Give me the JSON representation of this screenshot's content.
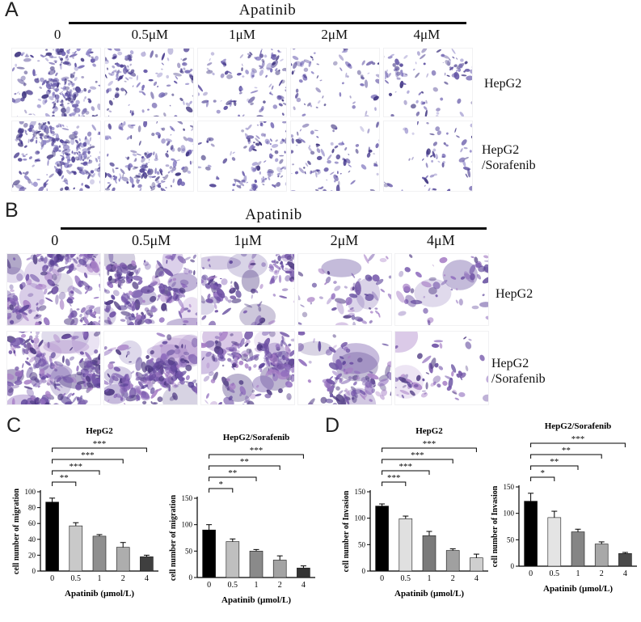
{
  "figure": {
    "panelA": {
      "label": "A",
      "drug": "Apatinib",
      "concentrations": [
        "0",
        "0.5μM",
        "1μM",
        "2μM",
        "4μM"
      ],
      "row_labels": [
        [
          "HepG2"
        ],
        [
          "HepG2",
          "/Sorafenib"
        ]
      ],
      "densities": [
        [
          230,
          140,
          115,
          80,
          100
        ],
        [
          260,
          170,
          130,
          95,
          70
        ]
      ],
      "stain_color": "#4c3f93"
    },
    "panelB": {
      "label": "B",
      "drug": "Apatinib",
      "concentrations": [
        "0",
        "0.5μM",
        "1μM",
        "2μM",
        "4μM"
      ],
      "row_labels": [
        [
          "HepG2"
        ],
        [
          "HepG2",
          "/Sorafenib"
        ]
      ],
      "densities": [
        [
          230,
          190,
          130,
          70,
          52
        ],
        [
          265,
          225,
          185,
          100,
          62
        ]
      ],
      "stain_color": "#6a4fa3"
    },
    "panelC_label": "C",
    "panelD_label": "D"
  },
  "chart_data": [
    {
      "panel": "C",
      "type": "bar",
      "title": "HepG2",
      "ylabel": "cell number of migration",
      "xlabel": "Apatinib (μmol/L)",
      "categories": [
        "0",
        "0.5",
        "1",
        "2",
        "4"
      ],
      "values": [
        87,
        57,
        44,
        30,
        18
      ],
      "errors": [
        5,
        4,
        2,
        6,
        2
      ],
      "ylim": [
        0,
        100
      ],
      "yticks": [
        0,
        20,
        40,
        60,
        80,
        100
      ],
      "bar_colors": [
        "#000000",
        "#c9c9c9",
        "#8f8f8f",
        "#adadad",
        "#3f3f3f"
      ],
      "brackets": [
        {
          "from": 0,
          "to": 1,
          "label": "**"
        },
        {
          "from": 0,
          "to": 2,
          "label": "***"
        },
        {
          "from": 0,
          "to": 3,
          "label": "***"
        },
        {
          "from": 0,
          "to": 4,
          "label": "***"
        }
      ]
    },
    {
      "panel": "C",
      "type": "bar",
      "title": "HepG2/Sorafenib",
      "ylabel": "cell number of migration",
      "xlabel": "Apatinib (μmol/L)",
      "categories": [
        "0",
        "0.5",
        "1",
        "2",
        "4"
      ],
      "values": [
        90,
        68,
        50,
        33,
        18
      ],
      "errors": [
        10,
        5,
        3,
        8,
        4
      ],
      "ylim": [
        0,
        150
      ],
      "yticks": [
        0,
        50,
        100,
        150
      ],
      "bar_colors": [
        "#000000",
        "#bfbfbf",
        "#8a8a8a",
        "#a3a3a3",
        "#333333"
      ],
      "brackets": [
        {
          "from": 0,
          "to": 1,
          "label": "*"
        },
        {
          "from": 0,
          "to": 2,
          "label": "**"
        },
        {
          "from": 0,
          "to": 3,
          "label": "**"
        },
        {
          "from": 0,
          "to": 4,
          "label": "***"
        }
      ]
    },
    {
      "panel": "D",
      "type": "bar",
      "title": "HepG2",
      "ylabel": "cell number of Invasion",
      "xlabel": "Apatinib (μmol/L)",
      "categories": [
        "0",
        "0.5",
        "1",
        "2",
        "4"
      ],
      "values": [
        123,
        99,
        67,
        39,
        25
      ],
      "errors": [
        4,
        5,
        8,
        3,
        7
      ],
      "ylim": [
        0,
        150
      ],
      "yticks": [
        0,
        50,
        100,
        150
      ],
      "bar_colors": [
        "#000000",
        "#e0e0e0",
        "#7a7a7a",
        "#a0a0a0",
        "#cfcfcf"
      ],
      "brackets": [
        {
          "from": 0,
          "to": 1,
          "label": "***"
        },
        {
          "from": 0,
          "to": 2,
          "label": "***"
        },
        {
          "from": 0,
          "to": 3,
          "label": "***"
        },
        {
          "from": 0,
          "to": 4,
          "label": "***"
        }
      ]
    },
    {
      "panel": "D",
      "type": "bar",
      "title": "HepG2/Sorafenib",
      "ylabel": "cell number of Invasion",
      "xlabel": "Apatinib (μmol/L)",
      "categories": [
        "0",
        "0.5",
        "1",
        "2",
        "4"
      ],
      "values": [
        123,
        92,
        65,
        42,
        24
      ],
      "errors": [
        15,
        12,
        5,
        4,
        2
      ],
      "ylim": [
        0,
        150
      ],
      "yticks": [
        0,
        50,
        100,
        150
      ],
      "bar_colors": [
        "#000000",
        "#e4e4e4",
        "#858585",
        "#a8a8a8",
        "#4a4a4a"
      ],
      "brackets": [
        {
          "from": 0,
          "to": 1,
          "label": "*"
        },
        {
          "from": 0,
          "to": 2,
          "label": "**"
        },
        {
          "from": 0,
          "to": 3,
          "label": "**"
        },
        {
          "from": 0,
          "to": 4,
          "label": "***"
        }
      ]
    }
  ]
}
